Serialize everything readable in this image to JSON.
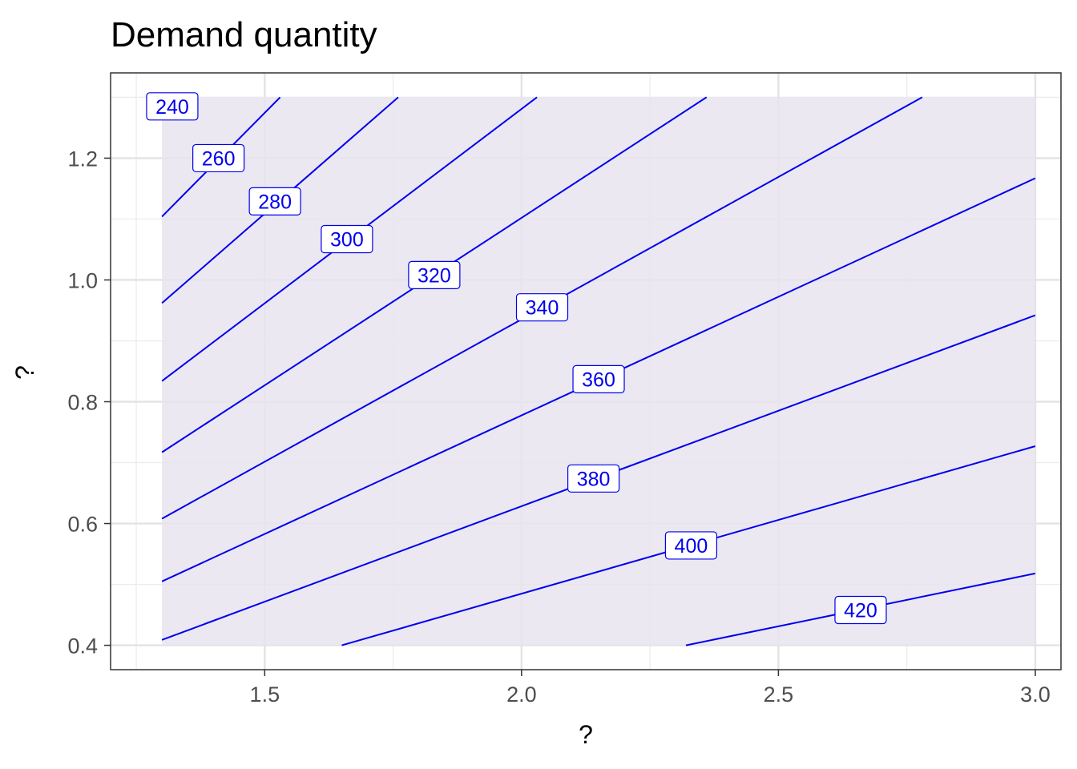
{
  "chart_data": {
    "type": "contour",
    "title": "Demand quantity",
    "xlabel": "?",
    "ylabel": "?",
    "xlim": [
      1.2,
      3.05
    ],
    "ylim": [
      0.36,
      1.34
    ],
    "x_ticks": [
      1.5,
      2.0,
      2.5,
      3.0
    ],
    "x_tick_labels": [
      "1.5",
      "2.0",
      "2.5",
      "3.0"
    ],
    "y_ticks": [
      0.4,
      0.6,
      0.8,
      1.0,
      1.2
    ],
    "y_tick_labels": [
      "0.4",
      "0.6",
      "0.8",
      "1.0",
      "1.2"
    ],
    "grid": true,
    "theme": "bw",
    "region": {
      "x": [
        1.3,
        3.0
      ],
      "y": [
        0.4,
        1.3
      ],
      "fill": "#e8e4ee"
    },
    "line_color": "#0000ee",
    "contours": [
      {
        "level": 240,
        "label": "240",
        "points": [
          [
            1.3,
            1.104
          ],
          [
            1.53,
            1.3
          ]
        ],
        "label_at": [
          1.32,
          1.285
        ]
      },
      {
        "level": 260,
        "label": "260",
        "points": [
          [
            1.3,
            0.962
          ],
          [
            1.76,
            1.3
          ]
        ],
        "label_at": [
          1.41,
          1.2
        ]
      },
      {
        "level": 280,
        "label": "280",
        "points": [
          [
            1.3,
            0.834
          ],
          [
            2.03,
            1.3
          ]
        ],
        "label_at": [
          1.52,
          1.129
        ]
      },
      {
        "level": 300,
        "label": "300",
        "points": [
          [
            1.3,
            0.717
          ],
          [
            2.36,
            1.3
          ]
        ],
        "label_at": [
          1.66,
          1.067
        ]
      },
      {
        "level": 320,
        "label": "320",
        "points": [
          [
            1.3,
            0.608
          ],
          [
            2.78,
            1.3
          ]
        ],
        "label_at": [
          1.83,
          1.008
        ]
      },
      {
        "level": 340,
        "label": "340",
        "points": [
          [
            1.3,
            0.505
          ],
          [
            3.0,
            1.167
          ]
        ],
        "label_at": [
          2.04,
          0.955
        ]
      },
      {
        "level": 360,
        "label": "360",
        "points": [
          [
            1.3,
            0.409
          ],
          [
            3.0,
            0.942
          ]
        ],
        "label_at": [
          2.15,
          0.837
        ]
      },
      {
        "level": 380,
        "label": "380",
        "points": [
          [
            1.65,
            0.4
          ],
          [
            3.0,
            0.727
          ]
        ],
        "label_at": [
          2.14,
          0.674
        ]
      },
      {
        "level": 400,
        "label": "400",
        "points": [
          [
            2.32,
            0.4
          ],
          [
            3.0,
            0.518
          ]
        ],
        "label_at": [
          2.33,
          0.564
        ]
      },
      {
        "level": 420,
        "label": "420",
        "points": [],
        "label_at": [
          2.66,
          0.458
        ]
      }
    ]
  }
}
